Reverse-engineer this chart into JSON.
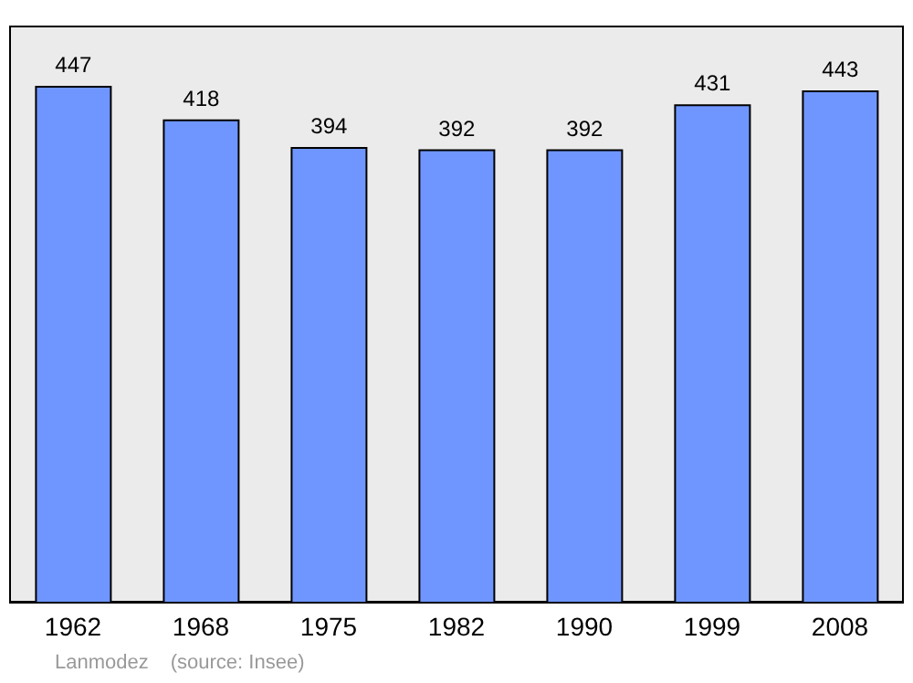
{
  "chart_data": {
    "type": "bar",
    "categories": [
      "1962",
      "1968",
      "1975",
      "1982",
      "1990",
      "1999",
      "2008"
    ],
    "values": [
      447,
      418,
      394,
      392,
      392,
      431,
      443
    ],
    "color": "#6f96ff",
    "data_labels": true,
    "ylim": [
      0,
      500
    ],
    "annotations": [
      "Lanmodez",
      "(source: Insee)"
    ]
  }
}
